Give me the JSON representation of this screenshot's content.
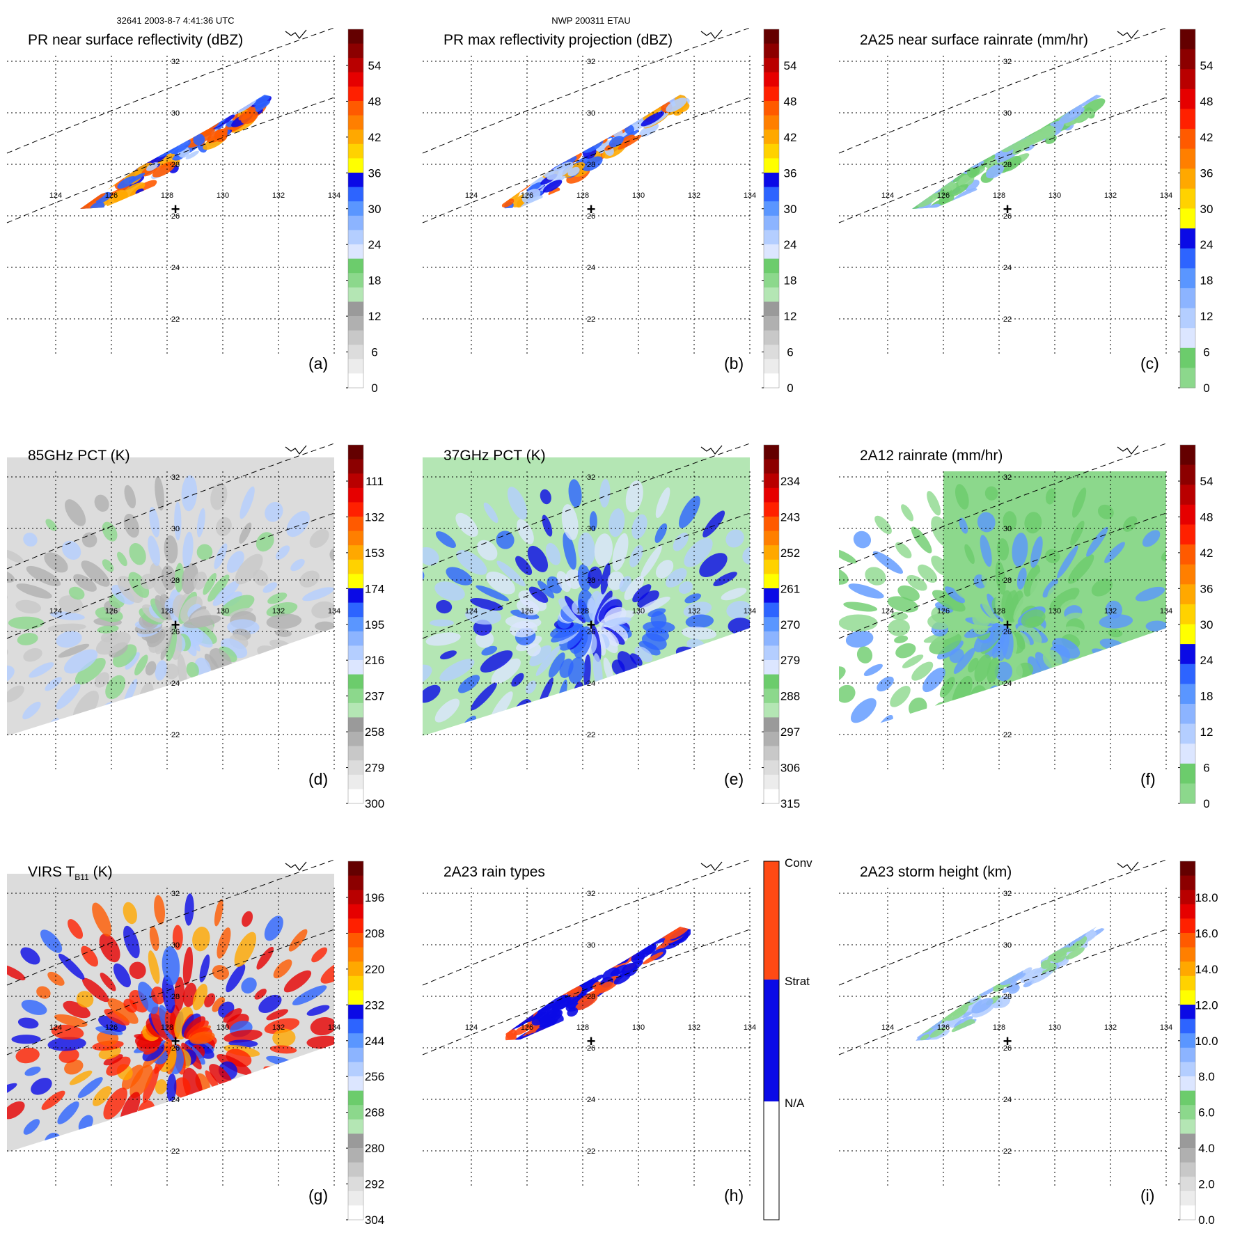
{
  "header": {
    "orbit_time": "32641 2003-8-7 4:41:36 UTC",
    "storm_id": "NWP 200311 ETAU"
  },
  "colors": {
    "ramp": [
      "#ffffff",
      "#ececec",
      "#dcdcdc",
      "#c8c8c8",
      "#b0b0b0",
      "#9a9a9a",
      "#b4e6b4",
      "#8cd88c",
      "#6ccc6c",
      "#dce6ff",
      "#b4ceff",
      "#8cb4ff",
      "#5a96ff",
      "#2d64ff",
      "#0a0ae6",
      "#ffff00",
      "#ffd200",
      "#ffa800",
      "#ff7f00",
      "#ff5a00",
      "#ff2000",
      "#e60000",
      "#b90000",
      "#8c0000",
      "#640000"
    ],
    "rain_type": [
      "#ffffff",
      "#0a0ae6",
      "#ff4a14"
    ],
    "land": "#000000",
    "grid": "#000000"
  },
  "map": {
    "lon_labels": [
      "124",
      "126",
      "128",
      "130",
      "132",
      "134"
    ],
    "lat_labels": [
      "32",
      "30",
      "28",
      "26",
      "24",
      "22"
    ],
    "center_marker": "+"
  },
  "panels": [
    {
      "id": "a",
      "letter": "(a)",
      "title": "PR near surface reflectivity (dBZ)",
      "ticks": [
        "54",
        "48",
        "42",
        "36",
        "30",
        "24",
        "18",
        "12",
        "6",
        "0"
      ],
      "colorbar": "ramp"
    },
    {
      "id": "b",
      "letter": "(b)",
      "title": "PR max reflectivity projection (dBZ)",
      "ticks": [
        "54",
        "48",
        "42",
        "36",
        "30",
        "24",
        "18",
        "12",
        "6",
        "0"
      ],
      "colorbar": "ramp"
    },
    {
      "id": "c",
      "letter": "(c)",
      "title": "2A25 near surface rainrate (mm/hr)",
      "ticks": [
        "54",
        "48",
        "42",
        "36",
        "30",
        "24",
        "18",
        "12",
        "6",
        "0"
      ],
      "colorbar": "ramp-green"
    },
    {
      "id": "d",
      "letter": "(d)",
      "title": "85GHz PCT (K)",
      "ticks": [
        "111",
        "132",
        "153",
        "174",
        "195",
        "216",
        "237",
        "258",
        "279",
        "300"
      ],
      "colorbar": "ramp"
    },
    {
      "id": "e",
      "letter": "(e)",
      "title": "37GHz PCT (K)",
      "ticks": [
        "234",
        "243",
        "252",
        "261",
        "270",
        "279",
        "288",
        "297",
        "306",
        "315"
      ],
      "colorbar": "ramp"
    },
    {
      "id": "f",
      "letter": "(f)",
      "title": "2A12 rainrate (mm/hr)",
      "ticks": [
        "54",
        "48",
        "42",
        "36",
        "30",
        "24",
        "18",
        "12",
        "6",
        "0"
      ],
      "colorbar": "ramp-green"
    },
    {
      "id": "g",
      "letter": "(g)",
      "title": "VIRS T",
      "title_sub": "B11",
      "title_end": " (K)",
      "ticks": [
        "196",
        "208",
        "220",
        "232",
        "244",
        "256",
        "268",
        "280",
        "292",
        "304"
      ],
      "colorbar": "ramp"
    },
    {
      "id": "h",
      "letter": "(h)",
      "title": "2A23 rain types",
      "ticks": [
        "Conv",
        "Strat",
        "N/A"
      ],
      "colorbar": "types"
    },
    {
      "id": "i",
      "letter": "(i)",
      "title": "2A23 storm height (km)",
      "ticks": [
        "18.0",
        "16.0",
        "14.0",
        "12.0",
        "10.0",
        "8.0",
        "6.0",
        "4.0",
        "2.0",
        "0.0"
      ],
      "colorbar": "ramp"
    }
  ]
}
